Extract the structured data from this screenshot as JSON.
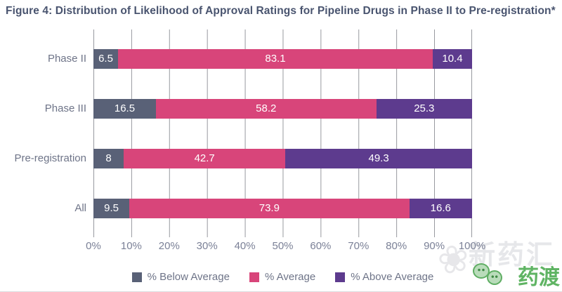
{
  "title": "Figure 4: Distribution of Likelihood of Approval Ratings for Pipeline Drugs in Phase II to Pre-registration*",
  "chart_data": {
    "type": "bar",
    "orientation": "horizontal",
    "stacked": true,
    "title": "Figure 4: Distribution of Likelihood of Approval Ratings for Pipeline Drugs in Phase II to Pre-registration*",
    "categories": [
      "Phase II",
      "Phase III",
      "Pre-registration",
      "All"
    ],
    "series": [
      {
        "name": "% Below Average",
        "color": "#596177",
        "values": [
          6.5,
          16.5,
          8,
          9.5
        ]
      },
      {
        "name": "% Average",
        "color": "#d8457a",
        "values": [
          83.1,
          58.2,
          42.7,
          73.9
        ]
      },
      {
        "name": "% Above Average",
        "color": "#5d3b8e",
        "values": [
          10.4,
          25.3,
          49.3,
          16.6
        ]
      }
    ],
    "x_axis": {
      "min": 0,
      "max": 100,
      "tick_step": 10,
      "tick_labels": [
        "0%",
        "10%",
        "20%",
        "30%",
        "40%",
        "50%",
        "60%",
        "70%",
        "80%",
        "90%",
        "100%"
      ]
    },
    "grid": "vertical",
    "legend_position": "bottom",
    "value_labels": "inside-white"
  },
  "watermark": {
    "ghost_text": "新药汇",
    "logo_text": "药渡",
    "logo_color": "#5fb463"
  },
  "colors": {
    "title_text": "#49546f",
    "category_text": "#6e7488",
    "axis_text": "#7b8197",
    "legend_text": "#6e7488",
    "gridline": "#97999f",
    "background": "#ffffff"
  }
}
